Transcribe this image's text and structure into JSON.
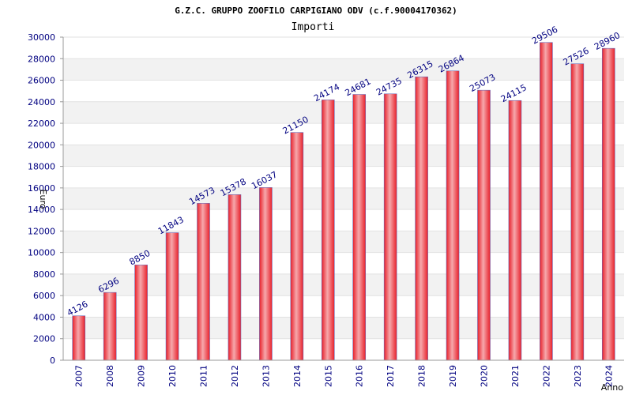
{
  "chart_data": {
    "type": "bar",
    "title": "G.Z.C. GRUPPO ZOOFILO CARPIGIANO ODV (c.f.90004170362)",
    "subtitle": "Importi",
    "xlabel": "Anno",
    "ylabel": "Euro",
    "ylim": [
      0,
      30000
    ],
    "ytick_step": 2000,
    "grid": true,
    "categories": [
      "2007",
      "2008",
      "2009",
      "2010",
      "2011",
      "2012",
      "2013",
      "2014",
      "2015",
      "2016",
      "2017",
      "2018",
      "2019",
      "2020",
      "2021",
      "2022",
      "2023",
      "2024"
    ],
    "values": [
      4126,
      6296,
      8850,
      11843,
      14573,
      15378,
      16037,
      21150,
      24174,
      24681,
      24735,
      26315,
      26864,
      25073,
      24115,
      29506,
      27526,
      28960
    ],
    "colors": {
      "bar": "#e8202a",
      "bar_highlight": "#f6a8ac",
      "bar_edge": "#6b6bb8",
      "band": "#f2f2f2",
      "axis": "#999999",
      "tick_text": "#000080"
    }
  }
}
